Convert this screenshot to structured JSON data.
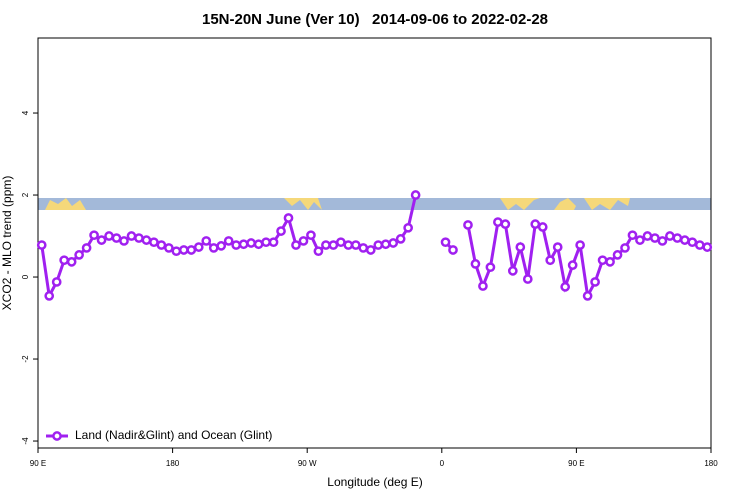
{
  "chart_data": {
    "type": "line",
    "title": "15N-20N June (Ver 10)   2014-09-06 to 2022-02-28",
    "xlabel": "Longitude (deg E)",
    "ylabel": "XCO2 - MLO trend (ppm)",
    "xlim": [
      90,
      540
    ],
    "ylim": [
      -4.17,
      5.83
    ],
    "xticks": [
      {
        "value": 90,
        "label": "90 E"
      },
      {
        "value": 180,
        "label": "180"
      },
      {
        "value": 270,
        "label": "90 W"
      },
      {
        "value": 360,
        "label": "0"
      },
      {
        "value": 450,
        "label": "90 E"
      },
      {
        "value": 540,
        "label": "180"
      }
    ],
    "yticks": [
      -4,
      -2,
      0,
      2,
      4
    ],
    "legend": "bottomleft",
    "x": [
      92.5,
      97.5,
      102.5,
      107.5,
      112.5,
      117.5,
      122.5,
      127.5,
      132.5,
      137.5,
      142.5,
      147.5,
      152.5,
      157.5,
      162.5,
      167.5,
      172.5,
      177.5,
      182.5,
      187.5,
      192.5,
      197.5,
      202.5,
      207.5,
      212.5,
      217.5,
      222.5,
      227.5,
      232.5,
      237.5,
      242.5,
      247.5,
      252.5,
      257.5,
      262.5,
      267.5,
      272.5,
      277.5,
      282.5,
      287.5,
      292.5,
      297.5,
      302.5,
      307.5,
      312.5,
      317.5,
      322.5,
      327.5,
      332.5,
      337.5,
      342.5,
      347.5,
      352.5,
      357.5,
      362.5,
      367.5,
      372.5,
      377.5,
      382.5,
      387.5,
      392.5,
      397.5,
      402.5,
      407.5,
      412.5,
      417.5,
      422.5,
      427.5,
      432.5,
      437.5,
      442.5,
      447.5,
      452.5,
      457.5,
      462.5,
      467.5,
      472.5,
      477.5,
      482.5,
      487.5,
      492.5,
      497.5,
      502.5,
      507.5,
      512.5,
      517.5,
      522.5,
      527.5,
      532.5,
      537.5
    ],
    "series": [
      {
        "name": "Land (Nadir&Glint) and Ocean (Glint)",
        "color": "#a020f0",
        "values": [
          0.78,
          -0.46,
          -0.12,
          0.41,
          0.37,
          0.54,
          0.71,
          1.02,
          0.9,
          1.0,
          0.95,
          0.88,
          1.0,
          0.95,
          0.9,
          0.85,
          0.78,
          0.71,
          0.63,
          0.66,
          0.66,
          0.73,
          0.88,
          0.71,
          0.76,
          0.88,
          0.78,
          0.8,
          0.83,
          0.8,
          0.85,
          0.85,
          1.12,
          1.44,
          0.78,
          0.88,
          1.02,
          0.63,
          0.78,
          0.78,
          0.85,
          0.78,
          0.78,
          0.71,
          0.66,
          0.78,
          0.8,
          0.83,
          0.93,
          1.2,
          2.0,
          null,
          null,
          null,
          0.85,
          0.66,
          null,
          1.27,
          0.32,
          -0.22,
          0.24,
          1.34,
          1.29,
          0.15,
          0.73,
          -0.05,
          1.29,
          1.22,
          0.41,
          0.73,
          -0.24,
          0.29,
          0.78,
          -0.46,
          -0.12,
          0.41,
          0.37,
          0.54,
          0.71,
          1.02,
          0.9,
          1.0,
          0.95,
          0.88,
          1.0,
          0.95,
          0.9,
          0.85,
          0.78,
          0.73
        ]
      }
    ]
  }
}
